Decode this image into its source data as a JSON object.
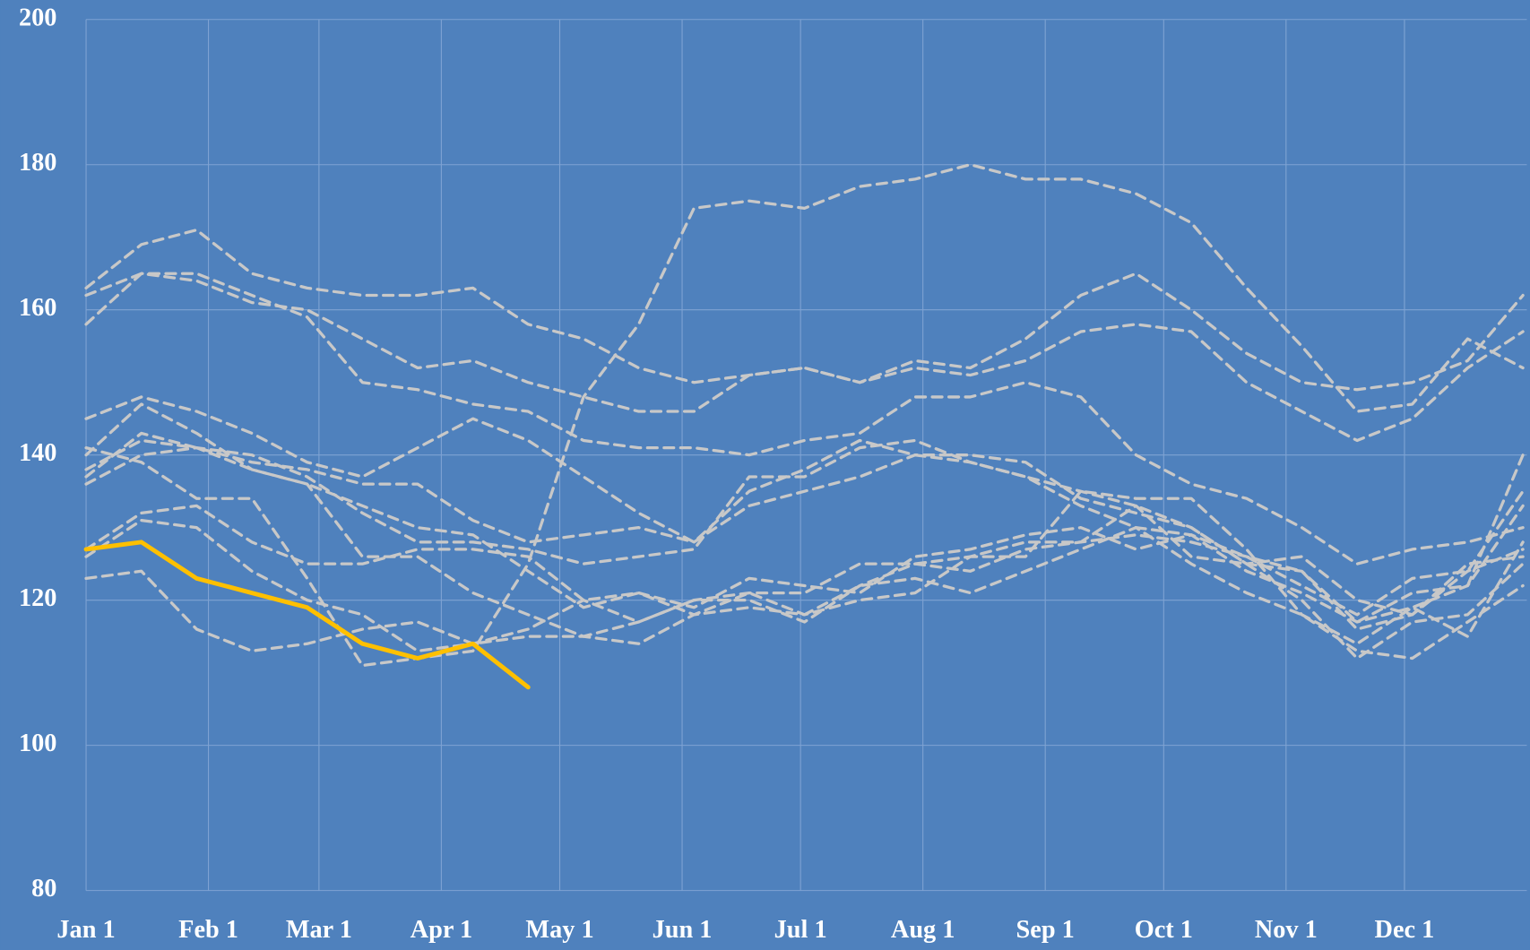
{
  "chart_data": {
    "type": "line",
    "background": "#4f81bd",
    "grid": true,
    "x": [
      0,
      14,
      28,
      42,
      56,
      70,
      84,
      98,
      112,
      126,
      140,
      154,
      168,
      182,
      196,
      210,
      224,
      238,
      252,
      266,
      280,
      294,
      308,
      322,
      336,
      350,
      364
    ],
    "xlim": [
      0,
      365
    ],
    "xticks": [
      {
        "value": 0,
        "label": "Jan 1"
      },
      {
        "value": 31,
        "label": "Feb 1"
      },
      {
        "value": 59,
        "label": "Mar 1"
      },
      {
        "value": 90,
        "label": "Apr 1"
      },
      {
        "value": 120,
        "label": "May 1"
      },
      {
        "value": 151,
        "label": "Jun 1"
      },
      {
        "value": 181,
        "label": "Jul 1"
      },
      {
        "value": 212,
        "label": "Aug 1"
      },
      {
        "value": 243,
        "label": "Sep 1"
      },
      {
        "value": 273,
        "label": "Oct 1"
      },
      {
        "value": 304,
        "label": "Nov 1"
      },
      {
        "value": 334,
        "label": "Dec 1"
      }
    ],
    "ylim": [
      80,
      200
    ],
    "yticks": [
      80,
      100,
      120,
      140,
      160,
      180,
      200
    ],
    "series": [
      {
        "color": "#c8c8c8",
        "dashed": true,
        "values": [
          163,
          169,
          171,
          165,
          163,
          162,
          162,
          163,
          158,
          156,
          152,
          150,
          151,
          152,
          150,
          153,
          152,
          156,
          162,
          165,
          160,
          154,
          150,
          149,
          150,
          153,
          162
        ]
      },
      {
        "color": "#c8c8c8",
        "dashed": true,
        "values": [
          162,
          165,
          164,
          161,
          160,
          156,
          152,
          153,
          150,
          148,
          146,
          146,
          151,
          152,
          150,
          152,
          151,
          153,
          157,
          158,
          157,
          150,
          146,
          142,
          145,
          152,
          157
        ]
      },
      {
        "color": "#c8c8c8",
        "dashed": true,
        "values": [
          158,
          165,
          165,
          162,
          159,
          150,
          149,
          147,
          146,
          142,
          141,
          141,
          140,
          142,
          143,
          148,
          148,
          150,
          148,
          140,
          136,
          134,
          130,
          125,
          127,
          128,
          130
        ]
      },
      {
        "color": "#c8c8c8",
        "dashed": true,
        "values": [
          141,
          139,
          134,
          134,
          123,
          111,
          112,
          113,
          125,
          148,
          158,
          174,
          175,
          174,
          177,
          178,
          180,
          178,
          178,
          176,
          172,
          163,
          155,
          146,
          147,
          156,
          152
        ]
      },
      {
        "color": "#c8c8c8",
        "dashed": true,
        "values": [
          145,
          148,
          146,
          143,
          139,
          137,
          141,
          145,
          142,
          137,
          132,
          128,
          135,
          138,
          142,
          140,
          139,
          137,
          135,
          133,
          130,
          125,
          126,
          120,
          118,
          125,
          126
        ]
      },
      {
        "color": "#c8c8c8",
        "dashed": true,
        "values": [
          138,
          142,
          141,
          140,
          137,
          132,
          128,
          128,
          127,
          125,
          126,
          127,
          137,
          137,
          141,
          142,
          139,
          137,
          133,
          130,
          129,
          126,
          122,
          118,
          123,
          124,
          135
        ]
      },
      {
        "color": "#c8c8c8",
        "dashed": true,
        "values": [
          137,
          143,
          141,
          139,
          138,
          136,
          136,
          131,
          128,
          129,
          130,
          128,
          133,
          135,
          137,
          140,
          140,
          139,
          134,
          132,
          130,
          125,
          124,
          117,
          121,
          122,
          140
        ]
      },
      {
        "color": "#c8c8c8",
        "dashed": true,
        "values": [
          127,
          132,
          133,
          128,
          125,
          125,
          127,
          127,
          126,
          120,
          121,
          119,
          123,
          122,
          121,
          126,
          127,
          129,
          130,
          127,
          129,
          124,
          121,
          117,
          119,
          122,
          133
        ]
      },
      {
        "color": "#c8c8c8",
        "dashed": true,
        "values": [
          126,
          131,
          130,
          124,
          120,
          118,
          113,
          114,
          116,
          120,
          117,
          120,
          120,
          117,
          122,
          125,
          124,
          127,
          128,
          129,
          128,
          126,
          124,
          116,
          118,
          124,
          127
        ]
      },
      {
        "color": "#c8c8c8",
        "dashed": true,
        "values": [
          123,
          124,
          116,
          113,
          114,
          116,
          117,
          114,
          115,
          115,
          114,
          118,
          119,
          118,
          122,
          123,
          121,
          124,
          127,
          130,
          125,
          121,
          118,
          113,
          112,
          117,
          122
        ]
      },
      {
        "color": "#c8c8c8",
        "dashed": true,
        "values": [
          136,
          140,
          141,
          138,
          136,
          126,
          126,
          121,
          118,
          115,
          117,
          120,
          121,
          121,
          125,
          125,
          126,
          128,
          128,
          133,
          126,
          125,
          120,
          112,
          117,
          118,
          125
        ]
      },
      {
        "color": "#c8c8c8",
        "dashed": true,
        "values": [
          140,
          147,
          143,
          138,
          136,
          133,
          130,
          129,
          124,
          119,
          121,
          118,
          121,
          118,
          120,
          121,
          126,
          126,
          135,
          134,
          134,
          127,
          118,
          114,
          119,
          115,
          128
        ]
      },
      {
        "color": "#ffc000",
        "dashed": false,
        "values": [
          127,
          128,
          123,
          121,
          119,
          114,
          112,
          114,
          108,
          null,
          null,
          null,
          null,
          null,
          null,
          null,
          null,
          null,
          null,
          null,
          null,
          null,
          null,
          null,
          null,
          null,
          null
        ]
      }
    ]
  }
}
